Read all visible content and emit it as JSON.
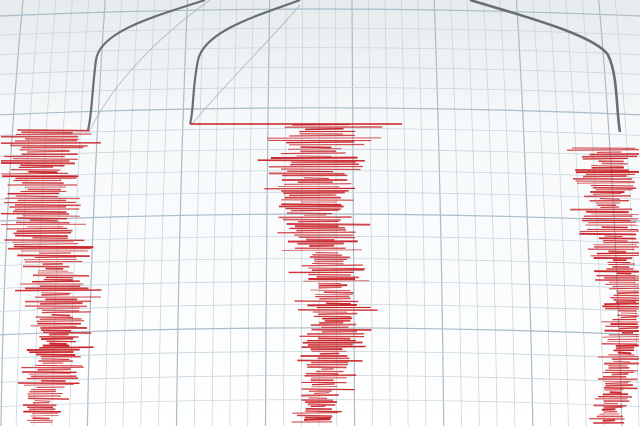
{
  "scene": {
    "subject": "seismograph",
    "colors": {
      "paper": "#f4f6f7",
      "grid_minor": "#c9d6de",
      "grid_major": "#a9bcc8",
      "trace": "#c81e24",
      "needle": "#6a6e72"
    },
    "traces": [
      {
        "name": "trace-left",
        "center": 50,
        "top": 130,
        "amplitude": 55
      },
      {
        "name": "trace-middle",
        "center": 325,
        "top": 125,
        "amplitude": 55
      },
      {
        "name": "trace-right",
        "center": 618,
        "top": 148,
        "amplitude": 40
      }
    ]
  }
}
